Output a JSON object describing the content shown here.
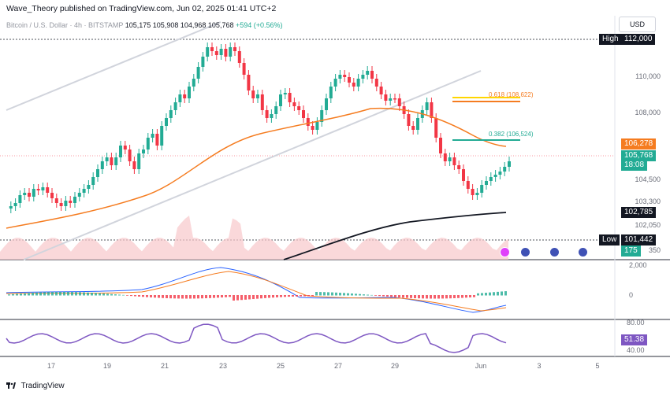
{
  "header": {
    "publisher": "Wave_Theory published on TradingView.com, Jun 02, 2025 01:41 UTC+2",
    "symbol": "Bitcoin / U.S. Dollar · 4h · BITSTAMP",
    "open": "105,175",
    "high": "105,908",
    "low": "104,968",
    "close": "105,768",
    "change": "+594 (+0.56%)",
    "currency": "USD"
  },
  "price_axis": {
    "ticks": [
      "110,000",
      "108,000",
      "104,500",
      "103,300",
      "102,050",
      "350"
    ],
    "high_label": "High",
    "high_value": "112,000",
    "low_label": "Low",
    "low_value": "101,442",
    "ema_value": "106,278",
    "last_price": "105,768",
    "countdown": "18:08",
    "sma_value": "102,785",
    "volume_value": "175"
  },
  "fib_levels": [
    {
      "label": "0.618 (108,622)",
      "color": "#f57c20"
    },
    {
      "label": "0.382 (106,524)",
      "color": "#22ab94"
    }
  ],
  "macd_axis": {
    "ticks": [
      "2,000",
      "0"
    ]
  },
  "rsi_axis": {
    "ticks": [
      "80.00",
      "40.00"
    ],
    "value": "51.38"
  },
  "time_axis": {
    "ticks": [
      "17",
      "19",
      "21",
      "23",
      "25",
      "27",
      "29",
      "Jun",
      "3",
      "5"
    ]
  },
  "footer": {
    "brand": "TradingView"
  },
  "colors": {
    "up": "#22ab94",
    "down": "#f23645",
    "ema": "#f57c20",
    "sma": "#131722",
    "rsi": "#7e57c2"
  }
}
